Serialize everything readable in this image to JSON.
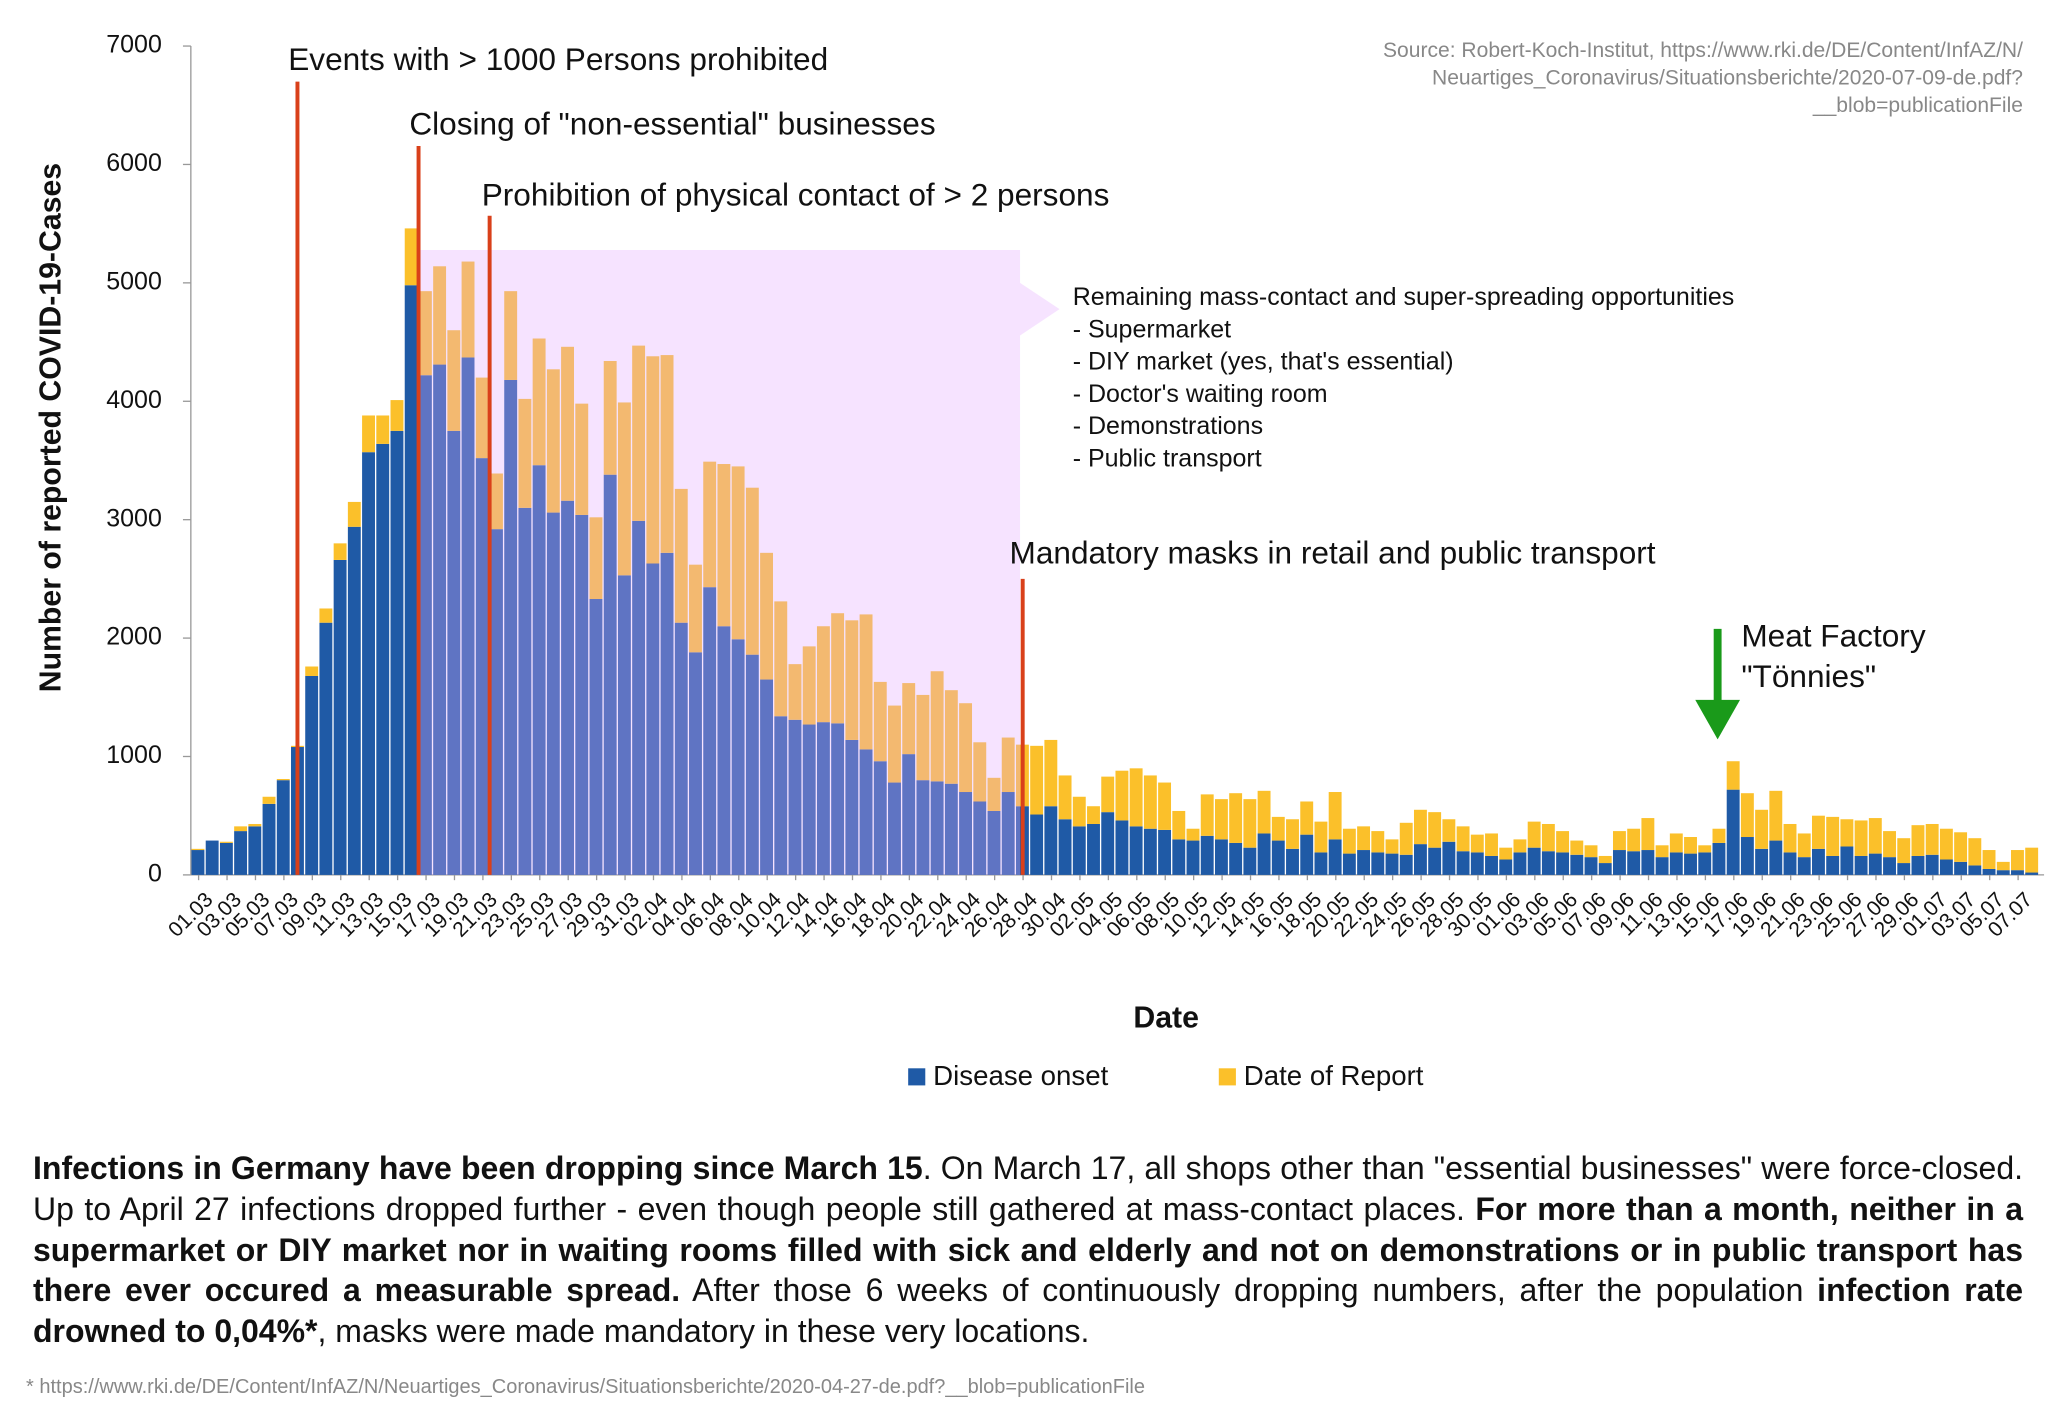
{
  "chart_data": {
    "type": "stacked_bar",
    "ylabel": "Number of reported COVID-19-Cases",
    "xlabel": "Date",
    "source": [
      "Source: Robert-Koch-Institut, https://www.rki.de/DE/Content/InfAZ/N/",
      "Neuartiges_Coronavirus/Situationsberichte/2020-07-09-de.pdf?",
      "__blob=publicationFile"
    ],
    "annotations": [
      "Events with > 1000 Persons prohibited",
      "Closing of \"non-essential\" businesses",
      "Prohibition of physical contact of > 2 persons",
      "Mandatory masks in retail and public transport"
    ],
    "highlight_text": [
      "Remaining mass-contact and super-spreading opportunities",
      "- Supermarket",
      "- DIY market (yes, that's essential)",
      "- Doctor's waiting room",
      "- Demonstrations",
      "- Public transport"
    ],
    "arrow_text": [
      "Meat Factory",
      "\"Tönnies\""
    ],
    "ylim": [
      0,
      7000
    ],
    "yticks": [
      0,
      1000,
      2000,
      3000,
      4000,
      5000,
      6000,
      7000
    ],
    "categories": [
      "01.03",
      null,
      "03.03",
      null,
      "05.03",
      null,
      "07.03",
      null,
      "09.03",
      null,
      "11.03",
      null,
      "13.03",
      null,
      "15.03",
      null,
      "17.03",
      null,
      "19.03",
      null,
      "21.03",
      null,
      "23.03",
      null,
      "25.03",
      null,
      "27.03",
      null,
      "29.03",
      null,
      "31.03",
      null,
      "02.04",
      null,
      "04.04",
      null,
      "06.04",
      null,
      "08.04",
      null,
      "10.04",
      null,
      "12.04",
      null,
      "14.04",
      null,
      "16.04",
      null,
      "18.04",
      null,
      "20.04",
      null,
      "22.04",
      null,
      "24.04",
      null,
      "26.04",
      null,
      "28.04",
      null,
      "30.04",
      null,
      "02.05",
      null,
      "04.05",
      null,
      "06.05",
      null,
      "08.05",
      null,
      "10.05",
      null,
      "12.05",
      null,
      "14.05",
      null,
      "16.05",
      null,
      "18.05",
      null,
      "20.05",
      null,
      "22.05",
      null,
      "24.05",
      null,
      "26.05",
      null,
      "28.05",
      null,
      "30.05",
      null,
      "01.06",
      null,
      "03.06",
      null,
      "05.06",
      null,
      "07.06",
      null,
      "09.06",
      null,
      "11.06",
      null,
      "13.06",
      null,
      "15.06",
      null,
      "17.06",
      null,
      "19.06",
      null,
      "21.06",
      null,
      "23.06",
      null,
      "25.06",
      null,
      "27.06",
      null,
      "29.06",
      null,
      "01.07",
      null,
      "03.07",
      null,
      "05.07",
      null,
      "07.07",
      null
    ],
    "series": [
      {
        "name": "Disease onset",
        "color": "#1f5aa6",
        "values": [
          210,
          290,
          270,
          370,
          410,
          600,
          800,
          1080,
          1680,
          2130,
          2660,
          2940,
          3570,
          3640,
          3750,
          4980,
          4220,
          4310,
          3750,
          4370,
          3520,
          2920,
          4180,
          3100,
          3460,
          3060,
          3160,
          3040,
          2330,
          3380,
          2530,
          2990,
          2630,
          2720,
          2130,
          1880,
          2430,
          2100,
          1990,
          1860,
          1650,
          1340,
          1310,
          1270,
          1290,
          1280,
          1140,
          1060,
          960,
          780,
          1020,
          800,
          790,
          770,
          700,
          620,
          540,
          700,
          580,
          510,
          580,
          470,
          410,
          430,
          530,
          460,
          410,
          390,
          380,
          300,
          290,
          330,
          300,
          270,
          230,
          350,
          290,
          220,
          340,
          190,
          300,
          180,
          210,
          190,
          180,
          170,
          260,
          230,
          280,
          200,
          190,
          160,
          130,
          190,
          230,
          200,
          190,
          170,
          150,
          100,
          210,
          200,
          210,
          150,
          190,
          180,
          190,
          270,
          720,
          320,
          220,
          290,
          190,
          150,
          220,
          160,
          240,
          160,
          180,
          150,
          100,
          160,
          170,
          130,
          110,
          80,
          50,
          40,
          40,
          20
        ]
      },
      {
        "name": "Date of Report",
        "color": "#fbc02a",
        "values": [
          10,
          0,
          10,
          40,
          20,
          60,
          10,
          10,
          80,
          120,
          140,
          210,
          310,
          240,
          260,
          480,
          710,
          830,
          850,
          810,
          680,
          470,
          750,
          920,
          1070,
          1210,
          1300,
          940,
          690,
          960,
          1460,
          1480,
          1750,
          1670,
          1130,
          740,
          1060,
          1370,
          1460,
          1410,
          1070,
          970,
          470,
          660,
          810,
          930,
          1010,
          1140,
          670,
          650,
          600,
          720,
          930,
          790,
          750,
          500,
          280,
          460,
          520,
          580,
          560,
          370,
          250,
          150,
          300,
          420,
          490,
          450,
          400,
          240,
          100,
          350,
          340,
          420,
          410,
          360,
          200,
          250,
          280,
          260,
          400,
          210,
          200,
          180,
          120,
          270,
          290,
          300,
          190,
          210,
          150,
          190,
          100,
          110,
          220,
          230,
          180,
          120,
          100,
          60,
          160,
          190,
          270,
          100,
          160,
          140,
          60,
          120,
          240,
          370,
          330,
          420,
          240,
          200,
          280,
          330,
          230,
          300,
          300,
          220,
          210,
          260,
          260,
          260,
          250,
          230,
          160,
          70,
          170,
          210
        ]
      }
    ]
  },
  "paragraph": [
    {
      "text": "Infections in Germany have been dropping since March 15",
      "bold": true
    },
    {
      "text": ". On March 17, all shops other than \"essential businesses\" were force-closed. Up to April 27 infections dropped further - even though people still gathered at mass-contact places. ",
      "bold": false
    },
    {
      "text": "For more than a month, neither in a supermarket or DIY market nor in waiting rooms filled with sick and elderly and not on demonstrations or in public transport has there ever occured a measurable spread.",
      "bold": true
    },
    {
      "text": " After those 6 weeks of continuously dropping numbers, after the population ",
      "bold": false
    },
    {
      "text": "infection rate drowned to 0,04%*",
      "bold": true
    },
    {
      "text": ", masks were made mandatory in these very locations.",
      "bold": false
    }
  ],
  "footnote": "* https://www.rki.de/DE/Content/InfAZ/N/Neuartiges_Coronavirus/Situationsberichte/2020-04-27-de.pdf?__blob=publicationFile"
}
